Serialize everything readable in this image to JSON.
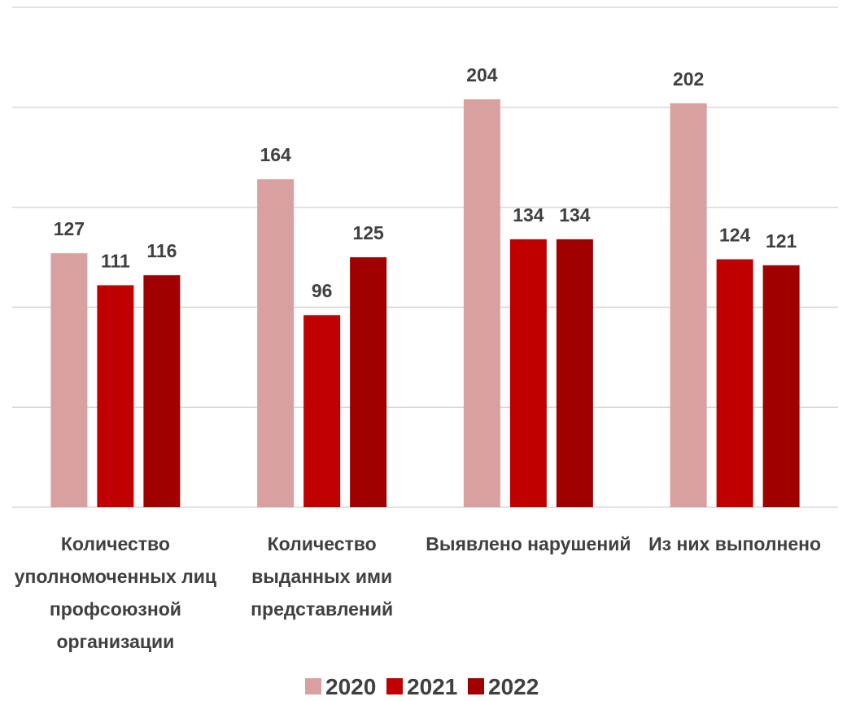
{
  "chart_data": {
    "type": "bar",
    "categories": [
      "Количество уполномоченных лиц профсоюзной организации",
      "Количество выданных ими представлений",
      "Выявлено нарушений",
      "Из них выполнено"
    ],
    "series": [
      {
        "name": "2020",
        "color": "#d9a0a0",
        "values": [
          127,
          164,
          204,
          202
        ]
      },
      {
        "name": "2021",
        "color": "#c00000",
        "values": [
          111,
          96,
          134,
          124
        ]
      },
      {
        "name": "2022",
        "color": "#a00000",
        "values": [
          116,
          125,
          134,
          121
        ]
      }
    ],
    "ylim": [
      0,
      250
    ],
    "yticks": [
      0,
      50,
      100,
      150,
      200,
      250
    ],
    "grid": true,
    "legend": "bottom"
  }
}
